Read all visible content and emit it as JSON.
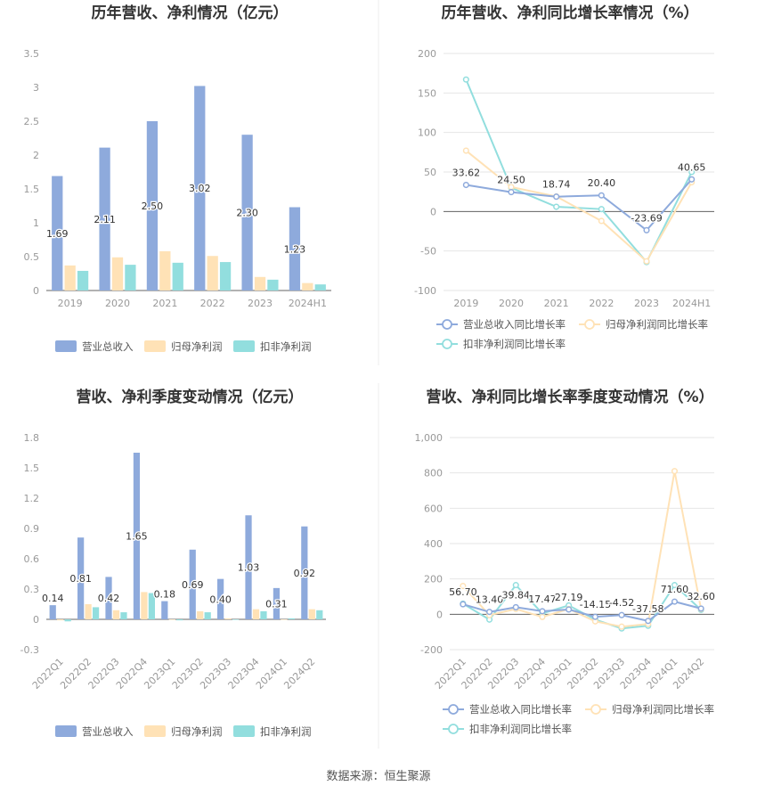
{
  "colors": {
    "revenue": "#8eaadc",
    "net_profit": "#ffe2b6",
    "deducted_profit": "#92dede",
    "axis_text": "#999999",
    "grid": "#e6e6e6",
    "title": "#333333",
    "label": "#333333"
  },
  "footer": "数据来源：恒生聚源",
  "chart_data": [
    {
      "type": "bar",
      "title": "历年营收、净利情况（亿元）",
      "categories": [
        "2019",
        "2020",
        "2021",
        "2022",
        "2023",
        "2024H1"
      ],
      "series": [
        {
          "name": "营业总收入",
          "values": [
            1.69,
            2.11,
            2.5,
            3.02,
            2.3,
            1.23
          ]
        },
        {
          "name": "归母净利润",
          "values": [
            0.37,
            0.49,
            0.58,
            0.51,
            0.2,
            0.11
          ]
        },
        {
          "name": "扣非净利润",
          "values": [
            0.29,
            0.38,
            0.41,
            0.42,
            0.16,
            0.09
          ]
        }
      ],
      "data_labels": [
        "1.69",
        "2.11",
        "2.50",
        "3.02",
        "2.30",
        "1.23"
      ],
      "ylim": [
        0,
        3.5
      ],
      "yticks": [
        0,
        0.5,
        1,
        1.5,
        2,
        2.5,
        3,
        3.5
      ],
      "ytick_labels": [
        "0",
        "0.5",
        "1",
        "1.5",
        "2",
        "2.5",
        "3",
        "3.5"
      ],
      "legend": "bottom",
      "grid": false
    },
    {
      "type": "line",
      "title": "历年营收、净利同比增长率情况（%）",
      "categories": [
        "2019",
        "2020",
        "2021",
        "2022",
        "2023",
        "2024H1"
      ],
      "series": [
        {
          "name": "营业总收入同比增长率",
          "values": [
            33.62,
            24.5,
            18.74,
            20.4,
            -23.69,
            40.65
          ]
        },
        {
          "name": "归母净利润同比增长率",
          "values": [
            77,
            31,
            19,
            -12,
            -63,
            37
          ]
        },
        {
          "name": "扣非净利润同比增长率",
          "values": [
            167,
            30,
            6,
            3,
            -64,
            50
          ]
        }
      ],
      "data_labels": [
        "33.62",
        "24.50",
        "18.74",
        "20.40",
        "-23.69",
        "40.65"
      ],
      "ylim": [
        -100,
        200
      ],
      "yticks": [
        -100,
        -50,
        0,
        50,
        100,
        150,
        200
      ],
      "ytick_labels": [
        "-100",
        "-50",
        "0",
        "50",
        "100",
        "150",
        "200"
      ],
      "legend": "bottom",
      "grid": true
    },
    {
      "type": "bar",
      "title": "营收、净利季度变动情况（亿元）",
      "categories": [
        "2022Q1",
        "2022Q2",
        "2022Q3",
        "2022Q4",
        "2023Q1",
        "2023Q2",
        "2023Q3",
        "2023Q4",
        "2024Q1",
        "2024Q2"
      ],
      "series": [
        {
          "name": "营业总收入",
          "values": [
            0.14,
            0.81,
            0.42,
            1.65,
            0.18,
            0.69,
            0.4,
            1.03,
            0.31,
            0.92
          ]
        },
        {
          "name": "归母净利润",
          "values": [
            -0.01,
            0.15,
            0.09,
            0.27,
            0.0,
            0.08,
            0.01,
            0.1,
            0.0,
            0.1
          ]
        },
        {
          "name": "扣非净利润",
          "values": [
            -0.02,
            0.12,
            0.07,
            0.26,
            -0.01,
            0.07,
            0.0,
            0.08,
            0.01,
            0.09
          ]
        }
      ],
      "data_labels": [
        "0.14",
        "0.81",
        "0.42",
        "1.65",
        "0.18",
        "0.69",
        "0.40",
        "1.03",
        "0.31",
        "0.92"
      ],
      "ylim": [
        -0.3,
        1.8
      ],
      "yticks": [
        -0.3,
        0,
        0.3,
        0.6,
        0.9,
        1.2,
        1.5,
        1.8
      ],
      "ytick_labels": [
        "-0.3",
        "0",
        "0.3",
        "0.6",
        "0.9",
        "1.2",
        "1.5",
        "1.8"
      ],
      "legend": "bottom",
      "grid": false
    },
    {
      "type": "line",
      "title": "营收、净利同比增长率季度变动情况（%）",
      "categories": [
        "2022Q1",
        "2022Q2",
        "2022Q3",
        "2022Q4",
        "2023Q1",
        "2023Q2",
        "2023Q3",
        "2023Q4",
        "2024Q1",
        "2024Q2"
      ],
      "series": [
        {
          "name": "营业总收入同比增长率",
          "values": [
            56.7,
            13.4,
            39.84,
            17.47,
            27.19,
            -14.15,
            -4.52,
            -37.58,
            71.6,
            32.6
          ]
        },
        {
          "name": "归母净利润同比增长率",
          "values": [
            160,
            -5,
            30,
            -15,
            30,
            -40,
            -70,
            -55,
            810,
            30
          ]
        },
        {
          "name": "扣非净利润同比增长率",
          "values": [
            60,
            -30,
            165,
            5,
            50,
            -30,
            -80,
            -65,
            165,
            25
          ]
        }
      ],
      "data_labels": [
        "56.70",
        "13.40",
        "39.84",
        "17.47",
        "27.19",
        "-14.15",
        "-4.52",
        "-37.58",
        "71.60",
        "32.60"
      ],
      "ylim": [
        -200,
        1000
      ],
      "yticks": [
        -200,
        0,
        200,
        400,
        600,
        800,
        1000
      ],
      "ytick_labels": [
        "-200",
        "0",
        "200",
        "400",
        "600",
        "800",
        "1,000"
      ],
      "legend": "bottom",
      "grid": true
    }
  ]
}
